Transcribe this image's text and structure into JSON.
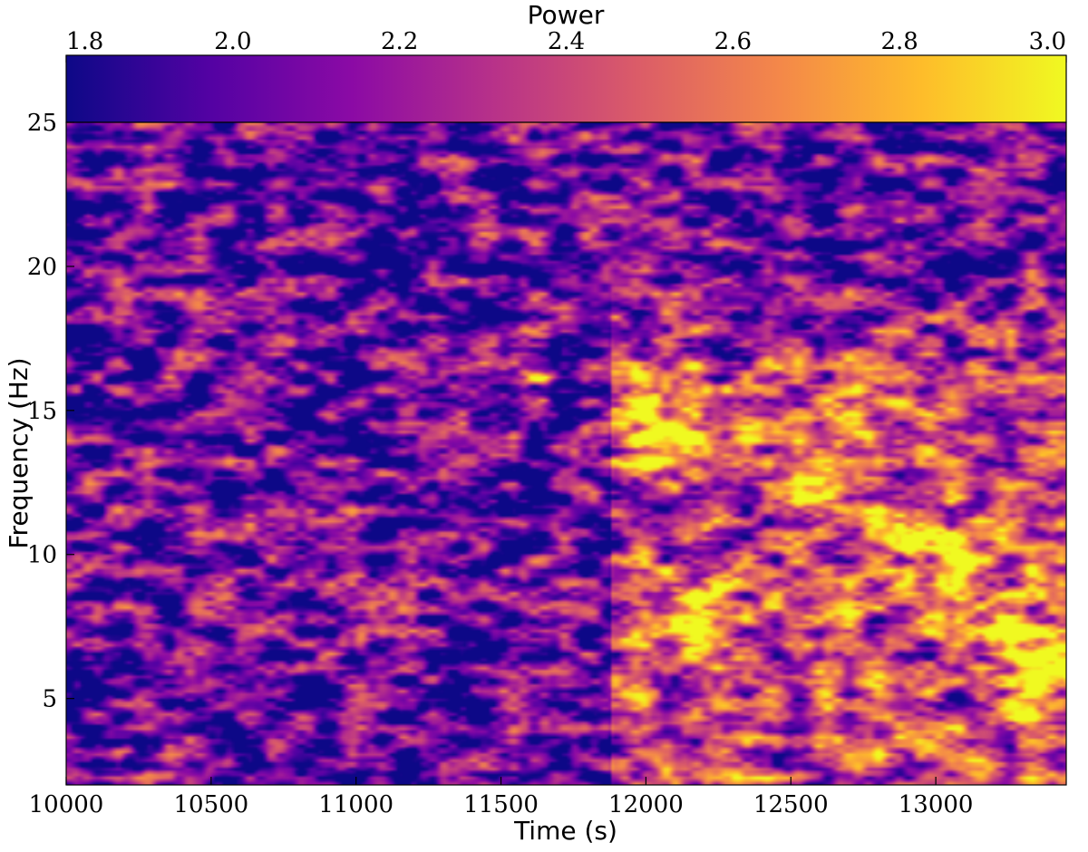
{
  "chart_data": {
    "type": "heatmap",
    "title": "",
    "xlabel": "Time (s)",
    "ylabel": "Frequency (Hz)",
    "xlim": [
      10000,
      13450
    ],
    "ylim": [
      2,
      25
    ],
    "x_ticks": [
      10000,
      10500,
      11000,
      11500,
      12000,
      12500,
      13000
    ],
    "y_ticks": [
      5,
      10,
      15,
      20,
      25
    ],
    "colorbar": {
      "label": "Power",
      "colormap": "plasma",
      "range": [
        1.8,
        3.0
      ],
      "ticks": [
        "1.8",
        "2.0",
        "2.2",
        "2.4",
        "2.6",
        "2.8",
        "3.0"
      ],
      "placement": "top"
    },
    "colors": [
      "#0d0887",
      "#5302a3",
      "#8b0aa5",
      "#b83289",
      "#db5c68",
      "#f48849",
      "#febd2a",
      "#f0f921"
    ],
    "grid": false,
    "regions": [
      {
        "time_range": [
          10000,
          11880
        ],
        "frequency_range": [
          2,
          25
        ],
        "description": "scattered moderate power, mostly 1.8-2.5"
      },
      {
        "time_range": [
          11880,
          13450
        ],
        "frequency_range": [
          2,
          16
        ],
        "description": "enhanced power up to ~3.0, strongest near 13.5-15 Hz at 12050-12750 s and 5-9 Hz at 13200-13450 s"
      }
    ],
    "hotspots": [
      {
        "time": 12080,
        "frequency": 13.8,
        "power": 3.0
      },
      {
        "time": 12050,
        "frequency": 15.2,
        "power": 2.95
      },
      {
        "time": 12700,
        "frequency": 14.3,
        "power": 2.95
      },
      {
        "time": 12620,
        "frequency": 12.3,
        "power": 2.9
      },
      {
        "time": 12950,
        "frequency": 10.8,
        "power": 2.95
      },
      {
        "time": 13250,
        "frequency": 7.3,
        "power": 3.0
      },
      {
        "time": 13420,
        "frequency": 6.0,
        "power": 3.0
      },
      {
        "time": 11600,
        "frequency": 16.6,
        "power": 2.9
      },
      {
        "time": 12180,
        "frequency": 8.2,
        "power": 2.85
      },
      {
        "time": 13100,
        "frequency": 9.2,
        "power": 2.9
      },
      {
        "time": 13300,
        "frequency": 4.5,
        "power": 2.9
      }
    ]
  }
}
